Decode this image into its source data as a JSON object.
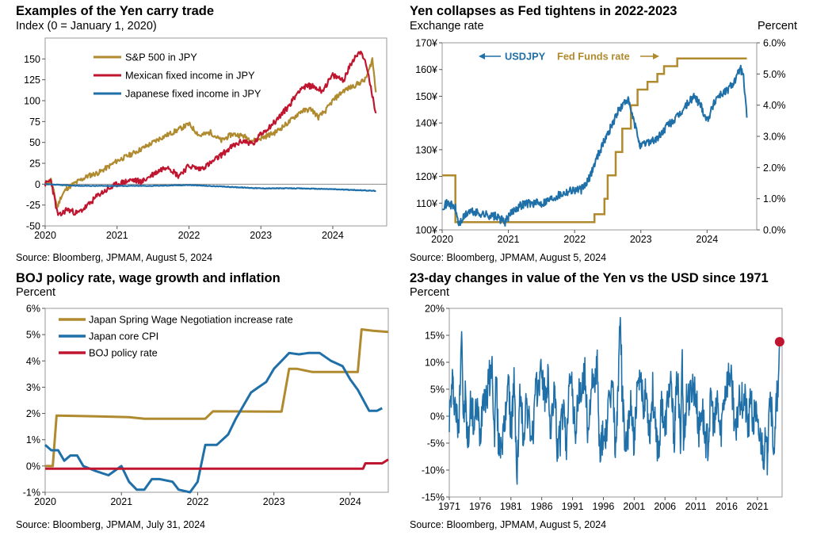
{
  "chart_data": [
    {
      "type": "line",
      "title": "Examples of the Yen carry trade",
      "subtitle": "Index (0 = January 1, 2020)",
      "source": "Source: Bloomberg, JPMAM, August 5, 2024",
      "ylim": [
        -50,
        175
      ],
      "yticks": [
        "150",
        "125",
        "100",
        "75",
        "50",
        "25",
        "0",
        "-25",
        "-50"
      ],
      "ytick_values": [
        150,
        125,
        100,
        75,
        50,
        25,
        0,
        -25,
        -50
      ],
      "xlim": [
        2020.0,
        2024.75
      ],
      "xticks": [
        "2020",
        "2021",
        "2022",
        "2023",
        "2024"
      ],
      "xtick_values": [
        2020,
        2021,
        2022,
        2023,
        2024
      ],
      "grid": false,
      "legend_position": "top-left",
      "series": [
        {
          "name": "S&P 500 in JPY",
          "color": "#b08a2e",
          "x": [
            2020.0,
            2020.08,
            2020.17,
            2020.22,
            2020.3,
            2020.45,
            2020.6,
            2020.75,
            2020.9,
            2021.0,
            2021.2,
            2021.4,
            2021.6,
            2021.8,
            2022.0,
            2022.15,
            2022.3,
            2022.45,
            2022.6,
            2022.75,
            2022.9,
            2023.0,
            2023.2,
            2023.4,
            2023.55,
            2023.7,
            2023.8,
            2023.9,
            2024.0,
            2024.15,
            2024.3,
            2024.45,
            2024.5,
            2024.55,
            2024.6
          ],
          "y": [
            0,
            5,
            -28,
            -15,
            -5,
            3,
            10,
            14,
            22,
            28,
            36,
            45,
            55,
            63,
            72,
            58,
            62,
            52,
            60,
            58,
            52,
            55,
            62,
            75,
            87,
            90,
            80,
            88,
            100,
            112,
            118,
            125,
            135,
            150,
            110
          ]
        },
        {
          "name": "Mexican fixed income in JPY",
          "color": "#c0152f",
          "x": [
            2020.0,
            2020.08,
            2020.17,
            2020.2,
            2020.3,
            2020.45,
            2020.6,
            2020.75,
            2020.9,
            2021.0,
            2021.2,
            2021.35,
            2021.5,
            2021.7,
            2021.85,
            2022.0,
            2022.15,
            2022.3,
            2022.45,
            2022.6,
            2022.75,
            2022.9,
            2023.0,
            2023.2,
            2023.4,
            2023.55,
            2023.7,
            2023.85,
            2024.0,
            2024.15,
            2024.3,
            2024.4,
            2024.5,
            2024.55,
            2024.6
          ],
          "y": [
            0,
            5,
            -35,
            -38,
            -30,
            -35,
            -25,
            -12,
            -5,
            0,
            5,
            3,
            12,
            22,
            10,
            22,
            18,
            25,
            35,
            45,
            52,
            48,
            60,
            75,
            95,
            115,
            118,
            112,
            130,
            125,
            152,
            160,
            130,
            105,
            85
          ]
        },
        {
          "name": "Japanese fixed income in JPY",
          "color": "#1f6fa8",
          "x": [
            2020.0,
            2020.2,
            2020.5,
            2021.0,
            2021.5,
            2022.0,
            2022.5,
            2023.0,
            2023.5,
            2024.0,
            2024.3,
            2024.6
          ],
          "y": [
            0,
            -1,
            -2,
            -2,
            -2,
            -1,
            -3,
            -5,
            -5,
            -6,
            -7,
            -8
          ]
        }
      ]
    },
    {
      "type": "line",
      "title": "Yen collapses as Fed tightens in 2022-2023",
      "ylabel": "Exchange rate",
      "y2label": "Percent",
      "source": "Source: Bloomberg, JPMAM, August 5, 2024",
      "ylim": [
        100,
        170
      ],
      "yticks": [
        "170¥",
        "160¥",
        "150¥",
        "140¥",
        "130¥",
        "120¥",
        "110¥",
        "100¥"
      ],
      "ytick_values": [
        170,
        160,
        150,
        140,
        130,
        120,
        110,
        100
      ],
      "y2lim": [
        0,
        6
      ],
      "y2ticks": [
        "6.0%",
        "5.0%",
        "4.0%",
        "3.0%",
        "2.0%",
        "1.0%",
        "0.0%"
      ],
      "y2tick_values": [
        6,
        5,
        4,
        3,
        2,
        1,
        0
      ],
      "xlim": [
        2020.0,
        2024.75
      ],
      "xticks": [
        "2020",
        "2021",
        "2022",
        "2023",
        "2024"
      ],
      "xtick_values": [
        2020,
        2021,
        2022,
        2023,
        2024
      ],
      "annotations": [
        "USDJPY",
        "Fed Funds rate"
      ],
      "series": [
        {
          "name": "USDJPY",
          "color": "#1f6fa8",
          "axis": "left",
          "x": [
            2020.0,
            2020.1,
            2020.2,
            2020.25,
            2020.4,
            2020.6,
            2020.8,
            2020.95,
            2021.1,
            2021.25,
            2021.5,
            2021.75,
            2021.95,
            2022.1,
            2022.2,
            2022.35,
            2022.5,
            2022.65,
            2022.8,
            2022.9,
            2023.0,
            2023.1,
            2023.25,
            2023.4,
            2023.55,
            2023.7,
            2023.8,
            2023.9,
            2024.0,
            2024.15,
            2024.3,
            2024.45,
            2024.5,
            2024.55,
            2024.6
          ],
          "y": [
            109,
            110,
            108,
            102,
            107,
            106,
            105,
            103,
            108,
            110,
            110,
            113,
            115,
            115,
            118,
            128,
            136,
            144,
            149,
            140,
            131,
            133,
            134,
            139,
            142,
            147,
            150,
            147,
            141,
            150,
            152,
            157,
            161,
            157,
            142
          ]
        },
        {
          "name": "Fed Funds rate",
          "color": "#b08a2e",
          "axis": "right",
          "x": [
            2020.0,
            2020.17,
            2020.2,
            2022.17,
            2022.3,
            2022.45,
            2022.5,
            2022.62,
            2022.72,
            2022.85,
            2022.95,
            2023.1,
            2023.25,
            2023.35,
            2023.55,
            2024.6
          ],
          "y": [
            1.75,
            1.75,
            0.25,
            0.25,
            0.5,
            1.0,
            1.75,
            2.5,
            3.25,
            4.0,
            4.5,
            4.75,
            5.0,
            5.25,
            5.5,
            5.5
          ]
        }
      ]
    },
    {
      "type": "line",
      "title": "BOJ policy rate, wage growth and inflation",
      "subtitle": "Percent",
      "source": "Source: Bloomberg, JPMAM, July 31, 2024",
      "ylim": [
        -1,
        6
      ],
      "yticks": [
        "6%",
        "5%",
        "4%",
        "3%",
        "2%",
        "1%",
        "0%",
        "-1%"
      ],
      "ytick_values": [
        6,
        5,
        4,
        3,
        2,
        1,
        0,
        -1
      ],
      "xlim": [
        2020.0,
        2024.5
      ],
      "xticks": [
        "2020",
        "2021",
        "2022",
        "2023",
        "2024"
      ],
      "xtick_values": [
        2020,
        2021,
        2022,
        2023,
        2024
      ],
      "legend_position": "top-left",
      "series": [
        {
          "name": "Japan Spring Wage Negotiation increase rate",
          "color": "#b08a2e",
          "x": [
            2020.0,
            2020.1,
            2020.15,
            2020.5,
            2021.1,
            2021.3,
            2022.1,
            2022.2,
            2023.0,
            2023.1,
            2023.2,
            2023.3,
            2023.5,
            2024.0,
            2024.1,
            2024.15,
            2024.3,
            2024.5
          ],
          "y": [
            0,
            0,
            1.92,
            1.9,
            1.86,
            1.8,
            1.8,
            2.08,
            2.07,
            2.07,
            3.7,
            3.7,
            3.58,
            3.58,
            3.58,
            5.2,
            5.15,
            5.1
          ]
        },
        {
          "name": "Japan core CPI",
          "color": "#1f6fa8",
          "x": [
            2020.0,
            2020.08,
            2020.17,
            2020.25,
            2020.33,
            2020.42,
            2020.5,
            2020.67,
            2020.83,
            2021.0,
            2021.1,
            2021.2,
            2021.3,
            2021.4,
            2021.5,
            2021.67,
            2021.75,
            2021.9,
            2022.0,
            2022.1,
            2022.25,
            2022.4,
            2022.5,
            2022.7,
            2022.8,
            2022.9,
            2023.0,
            2023.1,
            2023.2,
            2023.33,
            2023.45,
            2023.6,
            2023.75,
            2023.9,
            2024.0,
            2024.1,
            2024.25,
            2024.35,
            2024.42
          ],
          "y": [
            0.8,
            0.6,
            0.6,
            0.2,
            0.4,
            0.4,
            0.0,
            -0.2,
            -0.35,
            0.0,
            -0.6,
            -0.9,
            -0.9,
            -0.5,
            -0.5,
            -0.6,
            -0.9,
            -1.0,
            -0.6,
            0.8,
            0.8,
            1.2,
            1.8,
            2.8,
            3.0,
            3.2,
            3.7,
            4.0,
            4.3,
            4.25,
            4.3,
            4.3,
            4.0,
            3.8,
            3.3,
            2.9,
            2.1,
            2.1,
            2.2
          ]
        },
        {
          "name": "BOJ policy rate",
          "color": "#c0152f",
          "x": [
            2020.0,
            2024.17,
            2024.2,
            2024.42,
            2024.5
          ],
          "y": [
            -0.1,
            -0.1,
            0.1,
            0.1,
            0.25
          ]
        }
      ]
    },
    {
      "type": "line",
      "title": "23-day changes in value of the Yen vs the USD since 1971",
      "subtitle": "Percent",
      "source": "Source: Bloomberg, JPMAM, August 5, 2024",
      "ylim": [
        -15,
        20
      ],
      "yticks": [
        "20%",
        "15%",
        "10%",
        "5%",
        "0%",
        "-5%",
        "-10%",
        "-15%"
      ],
      "ytick_values": [
        20,
        15,
        10,
        5,
        0,
        -5,
        -10,
        -15
      ],
      "xlim": [
        1971,
        2025
      ],
      "xticks": [
        "1971",
        "1976",
        "1981",
        "1986",
        "1991",
        "1996",
        "2001",
        "2006",
        "2011",
        "2016",
        "2021"
      ],
      "xtick_values": [
        1971,
        1976,
        1981,
        1986,
        1991,
        1996,
        2001,
        2006,
        2011,
        2016,
        2021
      ],
      "highlight_point": {
        "x": 2024.6,
        "y": 13.8,
        "color": "#c0152f"
      },
      "series": [
        {
          "name": "",
          "color": "#1f6fa8",
          "x": [
            1971.0,
            1971.5,
            1972.0,
            1972.5,
            1973.0,
            1973.3,
            1973.6,
            1974.0,
            1974.5,
            1975.0,
            1975.5,
            1976.0,
            1976.5,
            1977.0,
            1977.5,
            1978.0,
            1978.3,
            1978.6,
            1979.0,
            1979.5,
            1980.0,
            1980.5,
            1981.0,
            1981.5,
            1982.0,
            1982.5,
            1983.0,
            1983.5,
            1984.0,
            1984.5,
            1985.0,
            1985.5,
            1986.0,
            1986.5,
            1987.0,
            1987.5,
            1988.0,
            1988.5,
            1989.0,
            1989.5,
            1990.0,
            1990.5,
            1991.0,
            1991.5,
            1992.0,
            1992.5,
            1993.0,
            1993.5,
            1994.0,
            1994.5,
            1995.0,
            1995.3,
            1995.6,
            1996.0,
            1996.5,
            1997.0,
            1997.5,
            1998.0,
            1998.5,
            1998.8,
            1999.0,
            1999.5,
            2000.0,
            2000.5,
            2001.0,
            2001.5,
            2002.0,
            2002.5,
            2003.0,
            2003.5,
            2004.0,
            2004.5,
            2005.0,
            2005.5,
            2006.0,
            2006.5,
            2007.0,
            2007.5,
            2008.0,
            2008.5,
            2008.8,
            2009.0,
            2009.5,
            2010.0,
            2010.5,
            2011.0,
            2011.5,
            2012.0,
            2012.5,
            2013.0,
            2013.5,
            2014.0,
            2014.5,
            2015.0,
            2015.5,
            2016.0,
            2016.5,
            2017.0,
            2017.5,
            2018.0,
            2018.5,
            2019.0,
            2019.5,
            2020.0,
            2020.3,
            2020.6,
            2021.0,
            2021.5,
            2022.0,
            2022.3,
            2022.6,
            2022.9,
            2023.2,
            2023.5,
            2023.8,
            2024.1,
            2024.4,
            2024.6
          ],
          "y": [
            0,
            6,
            2,
            -3,
            17.5,
            -2,
            4,
            -6,
            3,
            -2,
            2,
            -4,
            5,
            3,
            7,
            9,
            -5,
            8,
            -6,
            -4,
            -3,
            8,
            -3,
            6,
            -11,
            5,
            -4,
            3,
            -2,
            -4,
            4,
            6,
            9,
            3,
            7,
            -4,
            6,
            -5,
            -4,
            2,
            -7,
            10,
            3,
            -3,
            4,
            5,
            8,
            -4,
            6,
            5,
            10,
            -6,
            -5,
            -4,
            -3,
            3,
            6,
            -7,
            10,
            19,
            6,
            -5,
            -4,
            3,
            -5,
            4,
            6,
            3,
            4,
            -3,
            5,
            -4,
            -6,
            3,
            -3,
            4,
            5,
            -4,
            8,
            -5,
            13,
            -6,
            4,
            3,
            6,
            4,
            -3,
            2,
            -4,
            -5,
            4,
            -3,
            3,
            -4,
            3,
            6,
            8,
            4,
            -5,
            4,
            3,
            3,
            -3,
            5,
            -4,
            3,
            -3,
            -4,
            -7,
            -5,
            -8,
            5,
            3,
            -4,
            -6,
            3,
            4,
            13.8
          ]
        }
      ]
    }
  ]
}
